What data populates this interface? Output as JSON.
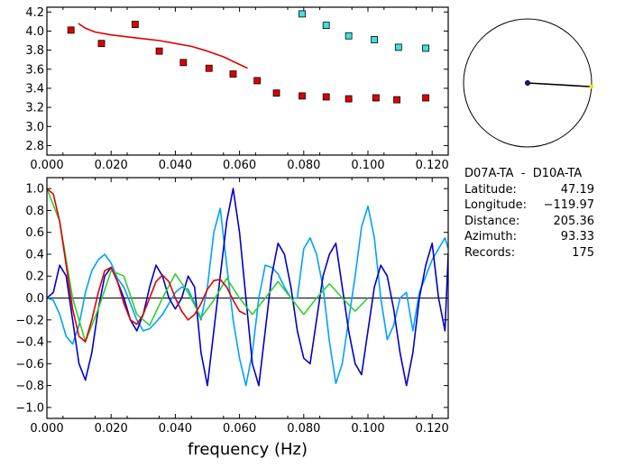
{
  "chart_data": [
    {
      "type": "scatter",
      "panel": "phase-velocity",
      "xlim": [
        0.0,
        0.125
      ],
      "ylim": [
        2.7,
        4.25
      ],
      "x_ticks": [
        "0.000",
        "0.020",
        "0.040",
        "0.060",
        "0.080",
        "0.100",
        "0.120"
      ],
      "x_tick_values": [
        0.0,
        0.02,
        0.04,
        0.06,
        0.08,
        0.1,
        0.12
      ],
      "y_ticks": [
        "4.2",
        "4.0",
        "3.8",
        "3.6",
        "3.4",
        "3.2",
        "3.0",
        "2.8"
      ],
      "y_tick_values": [
        4.2,
        4.0,
        3.8,
        3.6,
        3.4,
        3.2,
        3.0,
        2.8
      ],
      "series": [
        {
          "color": "#e00000",
          "marker": "square",
          "x": [
            0.0075,
            0.017,
            0.0275,
            0.035,
            0.0425,
            0.0505,
            0.058,
            0.0655,
            0.0715,
            0.0795,
            0.087,
            0.094,
            0.1025,
            0.109,
            0.118
          ],
          "y": [
            4.01,
            3.87,
            4.07,
            3.79,
            3.67,
            3.61,
            3.55,
            3.48,
            3.35,
            3.32,
            3.31,
            3.29,
            3.3,
            3.28,
            3.3
          ]
        },
        {
          "color": "#40e0e0",
          "marker": "square",
          "x": [
            0.0795,
            0.087,
            0.094,
            0.102,
            0.1095,
            0.118
          ],
          "y": [
            4.18,
            4.06,
            3.95,
            3.91,
            3.83,
            3.82
          ]
        },
        {
          "color": "#e00000",
          "marker": "line",
          "x": [
            0.0098,
            0.012,
            0.015,
            0.02,
            0.025,
            0.03,
            0.035,
            0.04,
            0.045,
            0.05,
            0.055,
            0.06,
            0.0625
          ],
          "y": [
            4.08,
            4.03,
            3.99,
            3.96,
            3.94,
            3.92,
            3.9,
            3.87,
            3.84,
            3.79,
            3.73,
            3.65,
            3.61
          ]
        }
      ]
    },
    {
      "type": "line",
      "panel": "correlation",
      "xlabel": "frequency (Hz)",
      "xlim": [
        0.0,
        0.125
      ],
      "ylim": [
        -1.1,
        1.1
      ],
      "x_ticks": [
        "0.000",
        "0.020",
        "0.040",
        "0.060",
        "0.080",
        "0.100",
        "0.120"
      ],
      "x_tick_values": [
        0.0,
        0.02,
        0.04,
        0.06,
        0.08,
        0.1,
        0.12
      ],
      "y_ticks": [
        "1.0",
        "0.8",
        "0.6",
        "0.4",
        "0.2",
        "0.0",
        "−0.2",
        "−0.4",
        "−0.6",
        "−0.8",
        "−1.0"
      ],
      "y_tick_values": [
        1.0,
        0.8,
        0.6,
        0.4,
        0.2,
        0.0,
        -0.2,
        -0.4,
        -0.6,
        -0.8,
        -1.0
      ],
      "series": [
        {
          "color": "#00a0ff",
          "role": "cyan",
          "x": [
            0.0,
            0.002,
            0.004,
            0.006,
            0.008,
            0.01,
            0.012,
            0.014,
            0.016,
            0.018,
            0.02,
            0.022,
            0.024,
            0.026,
            0.028,
            0.03,
            0.032,
            0.034,
            0.036,
            0.038,
            0.04,
            0.042,
            0.044,
            0.046,
            0.048,
            0.05,
            0.052,
            0.054,
            0.056,
            0.058,
            0.06,
            0.062,
            0.064,
            0.066,
            0.068,
            0.07,
            0.072,
            0.074,
            0.076,
            0.078,
            0.08,
            0.082,
            0.084,
            0.086,
            0.088,
            0.09,
            0.092,
            0.094,
            0.096,
            0.098,
            0.1,
            0.102,
            0.104,
            0.106,
            0.108,
            0.11,
            0.112,
            0.114,
            0.116,
            0.118,
            0.12,
            0.122,
            0.124,
            0.125
          ],
          "y": [
            0.0,
            -0.02,
            -0.15,
            -0.35,
            -0.42,
            -0.25,
            0.05,
            0.25,
            0.35,
            0.4,
            0.32,
            0.18,
            0.1,
            -0.05,
            -0.2,
            -0.3,
            -0.28,
            -0.22,
            -0.15,
            -0.05,
            0.05,
            0.1,
            0.08,
            -0.05,
            -0.2,
            0.1,
            0.6,
            0.82,
            0.3,
            -0.2,
            -0.55,
            -0.8,
            -0.5,
            0.0,
            0.3,
            0.28,
            0.22,
            0.1,
            0.0,
            0.0,
            0.45,
            0.55,
            0.4,
            0.1,
            -0.4,
            -0.78,
            -0.6,
            -0.2,
            0.2,
            0.65,
            0.84,
            0.55,
            0.0,
            -0.38,
            -0.25,
            0.0,
            0.05,
            -0.3,
            0.05,
            0.2,
            0.35,
            0.45,
            0.55,
            0.45
          ]
        },
        {
          "color": "#0000c8",
          "role": "blue",
          "x": [
            0.0,
            0.002,
            0.004,
            0.006,
            0.008,
            0.01,
            0.012,
            0.014,
            0.016,
            0.018,
            0.02,
            0.022,
            0.024,
            0.026,
            0.028,
            0.03,
            0.032,
            0.034,
            0.036,
            0.038,
            0.04,
            0.042,
            0.044,
            0.046,
            0.048,
            0.05,
            0.052,
            0.054,
            0.056,
            0.058,
            0.06,
            0.062,
            0.064,
            0.066,
            0.068,
            0.07,
            0.072,
            0.074,
            0.076,
            0.078,
            0.08,
            0.082,
            0.084,
            0.086,
            0.088,
            0.09,
            0.092,
            0.094,
            0.096,
            0.098,
            0.1,
            0.102,
            0.104,
            0.106,
            0.108,
            0.11,
            0.112,
            0.114,
            0.116,
            0.118,
            0.12,
            0.122,
            0.124,
            0.125
          ],
          "y": [
            0.0,
            0.05,
            0.3,
            0.2,
            -0.2,
            -0.6,
            -0.75,
            -0.5,
            -0.1,
            0.2,
            0.28,
            0.15,
            0.0,
            -0.2,
            -0.3,
            -0.15,
            0.1,
            0.3,
            0.2,
            0.0,
            -0.1,
            0.0,
            0.2,
            0.1,
            -0.5,
            -0.8,
            -0.3,
            0.2,
            0.7,
            1.0,
            0.6,
            0.0,
            -0.6,
            -0.8,
            -0.3,
            0.2,
            0.5,
            0.4,
            0.1,
            -0.3,
            -0.55,
            -0.6,
            -0.2,
            0.2,
            0.4,
            0.5,
            0.1,
            -0.3,
            -0.6,
            -0.7,
            -0.3,
            0.1,
            0.3,
            0.2,
            -0.1,
            -0.5,
            -0.8,
            -0.5,
            0.0,
            0.3,
            0.5,
            0.0,
            -0.3,
            0.4
          ]
        },
        {
          "color": "#30d030",
          "role": "green",
          "x": [
            0.0,
            0.004,
            0.008,
            0.012,
            0.016,
            0.02,
            0.024,
            0.028,
            0.032,
            0.036,
            0.04,
            0.044,
            0.048,
            0.052,
            0.056,
            0.06,
            0.064,
            0.068,
            0.072,
            0.076,
            0.08,
            0.084,
            0.088,
            0.092,
            0.096,
            0.1
          ],
          "y": [
            1.0,
            0.7,
            0.0,
            -0.4,
            -0.1,
            0.25,
            0.2,
            -0.15,
            -0.25,
            0.0,
            0.22,
            0.05,
            -0.18,
            -0.02,
            0.18,
            0.0,
            -0.15,
            0.0,
            0.15,
            0.0,
            -0.15,
            0.0,
            0.13,
            0.0,
            -0.12,
            0.0
          ]
        },
        {
          "color": "#e00000",
          "role": "red",
          "x": [
            0.0,
            0.002,
            0.004,
            0.006,
            0.008,
            0.01,
            0.012,
            0.014,
            0.016,
            0.018,
            0.02,
            0.022,
            0.024,
            0.026,
            0.028,
            0.03,
            0.032,
            0.034,
            0.036,
            0.038,
            0.04,
            0.042,
            0.044,
            0.046,
            0.048,
            0.05,
            0.052,
            0.054,
            0.056,
            0.058,
            0.06,
            0.062
          ],
          "y": [
            1.0,
            0.95,
            0.7,
            0.3,
            -0.1,
            -0.35,
            -0.4,
            -0.2,
            0.05,
            0.25,
            0.28,
            0.15,
            -0.05,
            -0.2,
            -0.24,
            -0.15,
            0.0,
            0.15,
            0.21,
            0.15,
            0.0,
            -0.12,
            -0.2,
            -0.15,
            -0.05,
            0.08,
            0.16,
            0.17,
            0.1,
            -0.02,
            -0.12,
            -0.15
          ]
        }
      ]
    }
  ],
  "compass": {
    "azimuth": 93.33
  },
  "info": {
    "title": "D07A-TA  -  D10A-TA",
    "rows": [
      {
        "label": "Latitude:",
        "value": "47.19"
      },
      {
        "label": "Longitude:",
        "value": "−119.97"
      },
      {
        "label": "Distance:",
        "value": "205.36"
      },
      {
        "label": "Azimuth:",
        "value": "93.33"
      },
      {
        "label": "Records:",
        "value": "175"
      }
    ]
  },
  "colors": {
    "axis": "#000000",
    "red": "#e00000",
    "cyan": "#40e0e0",
    "blue": "#0000c8",
    "green": "#30d030",
    "compass_tip": "#f0e000"
  }
}
